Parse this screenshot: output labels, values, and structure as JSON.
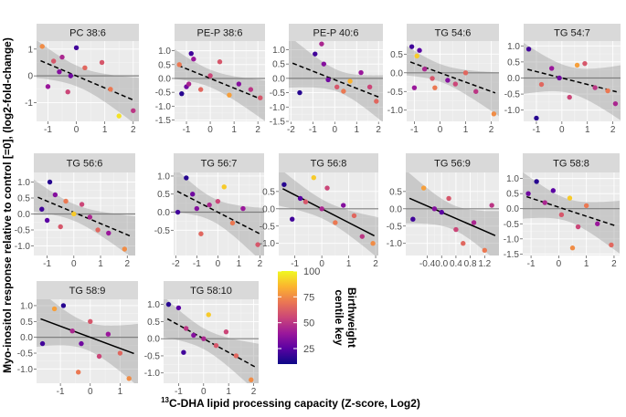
{
  "figure": {
    "ylabel": "Myo-inositol response relative to control [=0], (log2-fold-change)",
    "xlabel_superscript": "13",
    "xlabel_text": "C-DHA lipid processing capacity (Z-score, Log2)"
  },
  "legend": {
    "title_line1": "Birthweight",
    "title_line2": "centile key",
    "min": 10,
    "max": 100,
    "ticks": [
      25,
      50,
      75,
      100
    ],
    "tick_labels": [
      "25",
      "50",
      "75",
      "100"
    ],
    "colors": [
      "#0d0887",
      "#5b02a3",
      "#9a179b",
      "#cb4678",
      "#eb7852",
      "#fbb32f",
      "#f0f921"
    ]
  },
  "chart_data": [
    {
      "type": "scatter",
      "title": "PC 38:6",
      "xlim": [
        -1.4,
        2.2
      ],
      "ylim": [
        -1.7,
        1.3
      ],
      "xticks": [
        -1,
        0,
        1,
        2
      ],
      "yticks": [
        -1,
        0,
        1
      ],
      "xtick_labels": [
        "-1",
        "0",
        "1",
        "2"
      ],
      "ytick_labels": [
        "-1",
        "0",
        "1"
      ],
      "fit": {
        "style": "dashed",
        "slope": -0.45,
        "intercept": 0.0
      },
      "points": [
        {
          "x": -1.2,
          "y": 1.1,
          "c": 75
        },
        {
          "x": -0.8,
          "y": 0.55,
          "c": 60
        },
        {
          "x": -0.6,
          "y": 0.15,
          "c": 35
        },
        {
          "x": -0.5,
          "y": 0.7,
          "c": 45
        },
        {
          "x": -1.0,
          "y": -0.4,
          "c": 40
        },
        {
          "x": -0.3,
          "y": -0.6,
          "c": 55
        },
        {
          "x": 0.0,
          "y": 1.05,
          "c": 20
        },
        {
          "x": 0.3,
          "y": 0.3,
          "c": 65
        },
        {
          "x": 0.9,
          "y": 0.5,
          "c": 60
        },
        {
          "x": 1.2,
          "y": -0.5,
          "c": 70
        },
        {
          "x": 1.5,
          "y": -1.5,
          "c": 95
        },
        {
          "x": 2.0,
          "y": -1.3,
          "c": 50
        },
        {
          "x": -0.2,
          "y": 0.0,
          "c": 30
        }
      ]
    },
    {
      "type": "scatter",
      "title": "PE-P 38:6",
      "xlim": [
        -1.5,
        2.3
      ],
      "ylim": [
        -1.55,
        1.35
      ],
      "xticks": [
        -1,
        0,
        1,
        2
      ],
      "yticks": [
        -1.5,
        -1.0,
        -0.5,
        0.0,
        0.5,
        1.0
      ],
      "xtick_labels": [
        "-1",
        "0",
        "1",
        "2"
      ],
      "ytick_labels": [
        "-1.5",
        "-1.0",
        "-0.5",
        "0.0",
        "0.5",
        "1.0"
      ],
      "fit": {
        "style": "dashed",
        "slope": -0.35,
        "intercept": 0.0
      },
      "points": [
        {
          "x": -1.3,
          "y": 0.5,
          "c": 70
        },
        {
          "x": -1.0,
          "y": -0.3,
          "c": 30
        },
        {
          "x": -0.8,
          "y": 0.9,
          "c": 20
        },
        {
          "x": -0.7,
          "y": 0.7,
          "c": 40
        },
        {
          "x": -0.4,
          "y": -0.4,
          "c": 65
        },
        {
          "x": -0.9,
          "y": -0.2,
          "c": 45
        },
        {
          "x": 0.0,
          "y": 0.1,
          "c": 55
        },
        {
          "x": 0.4,
          "y": 0.6,
          "c": 60
        },
        {
          "x": 0.8,
          "y": -0.6,
          "c": 80
        },
        {
          "x": 1.2,
          "y": -0.2,
          "c": 35
        },
        {
          "x": 1.7,
          "y": -0.4,
          "c": 50
        },
        {
          "x": 2.1,
          "y": -0.7,
          "c": 60
        },
        {
          "x": -1.2,
          "y": -0.55,
          "c": 15
        }
      ]
    },
    {
      "type": "scatter",
      "title": "PE-P 40:6",
      "xlim": [
        -2.1,
        2.2
      ],
      "ylim": [
        -1.5,
        1.3
      ],
      "xticks": [
        -2,
        -1,
        0,
        1,
        2
      ],
      "yticks": [
        -1.5,
        -1.0,
        -0.5,
        0.0,
        0.5,
        1.0
      ],
      "xtick_labels": [
        "-2",
        "-1",
        "0",
        "1",
        "2"
      ],
      "ytick_labels": [
        "-1.5",
        "-1.0",
        "-0.5",
        "0.0",
        "0.5",
        "1.0"
      ],
      "fit": {
        "style": "dashed",
        "slope": -0.3,
        "intercept": -0.05
      },
      "points": [
        {
          "x": -1.6,
          "y": -0.5,
          "c": 15
        },
        {
          "x": -0.9,
          "y": 0.85,
          "c": 20
        },
        {
          "x": -0.6,
          "y": 1.2,
          "c": 45
        },
        {
          "x": -0.3,
          "y": -0.05,
          "c": 30
        },
        {
          "x": 0.1,
          "y": -0.3,
          "c": 60
        },
        {
          "x": 0.4,
          "y": -0.45,
          "c": 70
        },
        {
          "x": 0.7,
          "y": -0.1,
          "c": 85
        },
        {
          "x": 1.2,
          "y": 0.2,
          "c": 40
        },
        {
          "x": 1.6,
          "y": -0.3,
          "c": 55
        },
        {
          "x": 1.9,
          "y": -0.8,
          "c": 65
        },
        {
          "x": -0.5,
          "y": 0.5,
          "c": 35
        }
      ]
    },
    {
      "type": "scatter",
      "title": "TG 54:6",
      "xlim": [
        -1.3,
        2.3
      ],
      "ylim": [
        -1.3,
        0.85
      ],
      "xticks": [
        -1,
        0,
        1,
        2
      ],
      "yticks": [
        -1.0,
        -0.5,
        0.0,
        0.5
      ],
      "xtick_labels": [
        "-1",
        "0",
        "1",
        "2"
      ],
      "ytick_labels": [
        "-1.0",
        "-0.5",
        "0.0",
        "0.5"
      ],
      "fit": {
        "style": "dashed",
        "slope": -0.25,
        "intercept": 0.0
      },
      "points": [
        {
          "x": -1.1,
          "y": 0.7,
          "c": 20
        },
        {
          "x": -0.9,
          "y": 0.45,
          "c": 90
        },
        {
          "x": -0.8,
          "y": 0.6,
          "c": 25
        },
        {
          "x": -0.6,
          "y": 0.1,
          "c": 45
        },
        {
          "x": -0.3,
          "y": -0.15,
          "c": 60
        },
        {
          "x": -0.2,
          "y": -0.4,
          "c": 70
        },
        {
          "x": 0.3,
          "y": -0.2,
          "c": 35
        },
        {
          "x": 0.6,
          "y": -0.3,
          "c": 55
        },
        {
          "x": 1.0,
          "y": 0.0,
          "c": 65
        },
        {
          "x": 1.4,
          "y": -0.5,
          "c": 50
        },
        {
          "x": 2.1,
          "y": -1.1,
          "c": 75
        },
        {
          "x": -1.0,
          "y": -0.4,
          "c": 40
        }
      ]
    },
    {
      "type": "scatter",
      "title": "TG 54:7",
      "xlim": [
        -1.5,
        2.3
      ],
      "ylim": [
        -1.35,
        1.15
      ],
      "xticks": [
        -1,
        0,
        1,
        2
      ],
      "yticks": [
        -1.0,
        -0.5,
        0.0,
        0.5,
        1.0
      ],
      "xtick_labels": [
        "-1",
        "0",
        "1",
        "2"
      ],
      "ytick_labels": [
        "-1.0",
        "-0.5",
        "0.0",
        "0.5",
        "1.0"
      ],
      "fit": {
        "style": "dashed",
        "slope": -0.2,
        "intercept": 0.0
      },
      "points": [
        {
          "x": -1.3,
          "y": 0.9,
          "c": 20
        },
        {
          "x": -1.0,
          "y": -1.25,
          "c": 15
        },
        {
          "x": -0.8,
          "y": -0.2,
          "c": 65
        },
        {
          "x": -0.4,
          "y": 0.3,
          "c": 40
        },
        {
          "x": -0.1,
          "y": 0.0,
          "c": 30
        },
        {
          "x": 0.3,
          "y": -0.6,
          "c": 55
        },
        {
          "x": 0.6,
          "y": 0.4,
          "c": 80
        },
        {
          "x": 0.9,
          "y": 0.45,
          "c": 60
        },
        {
          "x": 1.3,
          "y": -0.3,
          "c": 50
        },
        {
          "x": 1.8,
          "y": -0.4,
          "c": 70
        },
        {
          "x": 2.1,
          "y": -0.8,
          "c": 45
        }
      ]
    },
    {
      "type": "scatter",
      "title": "TG 56:6",
      "xlim": [
        -1.5,
        2.3
      ],
      "ylim": [
        -1.3,
        1.3
      ],
      "xticks": [
        -1,
        0,
        1,
        2
      ],
      "yticks": [
        -1.0,
        -0.5,
        0.0,
        0.5,
        1.0
      ],
      "xtick_labels": [
        "-1",
        "0",
        "1",
        "2"
      ],
      "ytick_labels": [
        "-1.0",
        "-0.5",
        "0.0",
        "0.5",
        "1.0"
      ],
      "fit": {
        "style": "dashed",
        "slope": -0.35,
        "intercept": 0.05
      },
      "points": [
        {
          "x": -1.2,
          "y": 0.15,
          "c": 20
        },
        {
          "x": -0.9,
          "y": 1.0,
          "c": 15
        },
        {
          "x": -0.7,
          "y": 0.6,
          "c": 35
        },
        {
          "x": -0.5,
          "y": -0.4,
          "c": 60
        },
        {
          "x": -0.3,
          "y": 0.4,
          "c": 70
        },
        {
          "x": 0.0,
          "y": 0.0,
          "c": 90
        },
        {
          "x": 0.3,
          "y": 0.3,
          "c": 55
        },
        {
          "x": 0.6,
          "y": -0.1,
          "c": 45
        },
        {
          "x": 0.9,
          "y": -0.5,
          "c": 65
        },
        {
          "x": 1.3,
          "y": -0.6,
          "c": 40
        },
        {
          "x": 1.9,
          "y": -1.1,
          "c": 75
        },
        {
          "x": -1.0,
          "y": -0.2,
          "c": 25
        }
      ]
    },
    {
      "type": "scatter",
      "title": "TG 56:7",
      "xlim": [
        -2.1,
        2.2
      ],
      "ylim": [
        -1.2,
        1.1
      ],
      "xticks": [
        -2,
        -1,
        0,
        1,
        2
      ],
      "yticks": [
        -0.5,
        0.0,
        0.5,
        1.0
      ],
      "xtick_labels": [
        "-2",
        "-1",
        "0",
        "1",
        "2"
      ],
      "ytick_labels": [
        "-0.5",
        "0.0",
        "0.5",
        "1.0"
      ],
      "fit": {
        "style": "dashed",
        "slope": -0.3,
        "intercept": 0.0
      },
      "points": [
        {
          "x": -1.9,
          "y": 0.0,
          "c": 20
        },
        {
          "x": -1.5,
          "y": 0.95,
          "c": 15
        },
        {
          "x": -1.2,
          "y": 0.5,
          "c": 30
        },
        {
          "x": -0.8,
          "y": -0.6,
          "c": 65
        },
        {
          "x": -0.4,
          "y": 0.2,
          "c": 45
        },
        {
          "x": 0.0,
          "y": 0.3,
          "c": 55
        },
        {
          "x": 0.3,
          "y": 0.7,
          "c": 90
        },
        {
          "x": 0.7,
          "y": -0.3,
          "c": 70
        },
        {
          "x": 1.2,
          "y": 0.1,
          "c": 40
        },
        {
          "x": 1.9,
          "y": -0.9,
          "c": 60
        },
        {
          "x": -1.0,
          "y": 0.1,
          "c": 35
        }
      ]
    },
    {
      "type": "scatter",
      "title": "TG 56:8",
      "xlim": [
        -1.6,
        2.1
      ],
      "ylim": [
        -1.35,
        1.05
      ],
      "xticks": [
        -1,
        0,
        1,
        2
      ],
      "yticks": [
        -1.0,
        -0.5,
        0.0,
        0.5
      ],
      "xtick_labels": [
        "-1",
        "0",
        "1",
        "2"
      ],
      "ytick_labels": [
        "-1.0",
        "-0.5",
        "0.0",
        "0.5"
      ],
      "fit": {
        "style": "solid",
        "slope": -0.4,
        "intercept": 0.0
      },
      "points": [
        {
          "x": -1.4,
          "y": 0.7,
          "c": 15
        },
        {
          "x": -1.1,
          "y": -0.3,
          "c": 20
        },
        {
          "x": -0.6,
          "y": 0.2,
          "c": 60
        },
        {
          "x": -0.3,
          "y": 0.9,
          "c": 90
        },
        {
          "x": 0.0,
          "y": 0.0,
          "c": 45
        },
        {
          "x": 0.2,
          "y": 0.6,
          "c": 55
        },
        {
          "x": 0.5,
          "y": -0.4,
          "c": 70
        },
        {
          "x": 0.8,
          "y": 0.1,
          "c": 35
        },
        {
          "x": 1.2,
          "y": -0.2,
          "c": 65
        },
        {
          "x": 1.5,
          "y": -0.8,
          "c": 50
        },
        {
          "x": 1.9,
          "y": -1.0,
          "c": 75
        },
        {
          "x": -0.8,
          "y": 0.3,
          "c": 25
        }
      ]
    },
    {
      "type": "scatter",
      "title": "TG 56:9",
      "xlim": [
        -1.0,
        1.6
      ],
      "ylim": [
        -1.35,
        1.05
      ],
      "xticks": [
        -0.4,
        0.0,
        0.4,
        0.8,
        1.2
      ],
      "yticks": [
        -1.0,
        -0.5,
        0.0,
        0.5
      ],
      "xtick_labels": [
        "-0.4",
        "0.0",
        "0.4",
        "0.8",
        "1.2"
      ],
      "ytick_labels": [
        "-1.0",
        "-0.5",
        "0.0",
        "0.5"
      ],
      "fit": {
        "style": "solid",
        "slope": -0.45,
        "intercept": -0.1
      },
      "points": [
        {
          "x": -0.8,
          "y": -0.3,
          "c": 20
        },
        {
          "x": -0.5,
          "y": 0.6,
          "c": 80
        },
        {
          "x": -0.2,
          "y": 0.0,
          "c": 35
        },
        {
          "x": 0.0,
          "y": -0.1,
          "c": 25
        },
        {
          "x": 0.2,
          "y": 0.3,
          "c": 60
        },
        {
          "x": 0.4,
          "y": -0.6,
          "c": 55
        },
        {
          "x": 0.6,
          "y": -1.0,
          "c": 65
        },
        {
          "x": 0.9,
          "y": -0.4,
          "c": 45
        },
        {
          "x": 1.2,
          "y": -1.2,
          "c": 70
        },
        {
          "x": 1.4,
          "y": 0.1,
          "c": 50
        }
      ]
    },
    {
      "type": "scatter",
      "title": "TG 58:8",
      "xlim": [
        -1.3,
        2.2
      ],
      "ylim": [
        -1.55,
        1.2
      ],
      "xticks": [
        -1,
        0,
        1,
        2
      ],
      "yticks": [
        -1.5,
        -1.0,
        -0.5,
        0.0,
        0.5,
        1.0
      ],
      "xtick_labels": [
        "-1",
        "0",
        "1",
        "2"
      ],
      "ytick_labels": [
        "-1.5",
        "-1.0",
        "-0.5",
        "0.0",
        "0.5",
        "1.0"
      ],
      "fit": {
        "style": "dashed",
        "slope": -0.3,
        "intercept": 0.05
      },
      "points": [
        {
          "x": -1.1,
          "y": 0.5,
          "c": 30
        },
        {
          "x": -0.8,
          "y": 0.9,
          "c": 15
        },
        {
          "x": -0.5,
          "y": 0.2,
          "c": 45
        },
        {
          "x": -0.2,
          "y": 0.6,
          "c": 25
        },
        {
          "x": 0.1,
          "y": -0.2,
          "c": 60
        },
        {
          "x": 0.4,
          "y": 0.35,
          "c": 90
        },
        {
          "x": 0.7,
          "y": -0.6,
          "c": 55
        },
        {
          "x": 1.0,
          "y": 0.1,
          "c": 70
        },
        {
          "x": 1.4,
          "y": -0.5,
          "c": 40
        },
        {
          "x": 1.9,
          "y": -1.2,
          "c": 65
        },
        {
          "x": 0.5,
          "y": -1.3,
          "c": 75
        }
      ]
    },
    {
      "type": "scatter",
      "title": "TG 58:9",
      "xlim": [
        -1.8,
        1.6
      ],
      "ylim": [
        -1.45,
        1.2
      ],
      "xticks": [
        -1,
        0,
        1
      ],
      "yticks": [
        -1.0,
        -0.5,
        0.0,
        0.5,
        1.0
      ],
      "xtick_labels": [
        "-1",
        "0",
        "1"
      ],
      "ytick_labels": [
        "-1.0",
        "-0.5",
        "0.0",
        "0.5",
        "1.0"
      ],
      "fit": {
        "style": "solid",
        "slope": -0.35,
        "intercept": 0.0
      },
      "points": [
        {
          "x": -1.6,
          "y": -0.2,
          "c": 20
        },
        {
          "x": -1.2,
          "y": 0.9,
          "c": 80
        },
        {
          "x": -0.9,
          "y": 1.0,
          "c": 15
        },
        {
          "x": -0.6,
          "y": 0.2,
          "c": 45
        },
        {
          "x": -0.3,
          "y": -0.2,
          "c": 30
        },
        {
          "x": 0.0,
          "y": 0.5,
          "c": 60
        },
        {
          "x": 0.3,
          "y": -0.6,
          "c": 55
        },
        {
          "x": 0.6,
          "y": 0.1,
          "c": 40
        },
        {
          "x": 1.0,
          "y": -0.5,
          "c": 65
        },
        {
          "x": 1.3,
          "y": -1.3,
          "c": 75
        },
        {
          "x": -0.4,
          "y": -1.1,
          "c": 70
        }
      ]
    },
    {
      "type": "scatter",
      "title": "TG 58:10",
      "xlim": [
        -1.6,
        2.2
      ],
      "ylim": [
        -1.3,
        1.15
      ],
      "xticks": [
        -1,
        0,
        1,
        2
      ],
      "yticks": [
        -1.0,
        -0.5,
        0.0,
        0.5,
        1.0
      ],
      "xtick_labels": [
        "-1",
        "0",
        "1",
        "2"
      ],
      "ytick_labels": [
        "-1.0",
        "-0.5",
        "0.0",
        "0.5",
        "1.0"
      ],
      "fit": {
        "style": "dashed",
        "slope": -0.4,
        "intercept": 0.0
      },
      "points": [
        {
          "x": -1.4,
          "y": 1.0,
          "c": 15
        },
        {
          "x": -1.0,
          "y": 0.9,
          "c": 25
        },
        {
          "x": -0.7,
          "y": 0.3,
          "c": 50
        },
        {
          "x": -0.4,
          "y": 0.1,
          "c": 35
        },
        {
          "x": 0.0,
          "y": 0.0,
          "c": 45
        },
        {
          "x": 0.2,
          "y": 0.7,
          "c": 90
        },
        {
          "x": 0.5,
          "y": -0.2,
          "c": 60
        },
        {
          "x": 0.9,
          "y": 0.2,
          "c": 55
        },
        {
          "x": 1.3,
          "y": -0.5,
          "c": 65
        },
        {
          "x": 1.9,
          "y": -1.2,
          "c": 75
        },
        {
          "x": -0.8,
          "y": -0.4,
          "c": 20
        }
      ]
    }
  ]
}
